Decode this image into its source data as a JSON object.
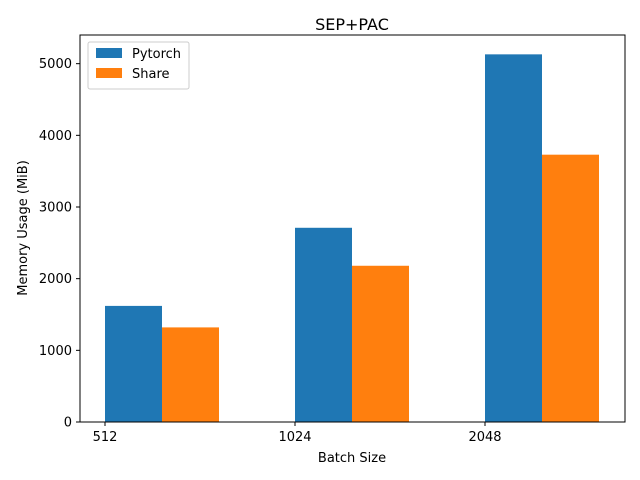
{
  "chart_data": {
    "type": "bar",
    "title": "SEP+PAC",
    "xlabel": "Batch Size",
    "ylabel": "Memory Usage (MiB)",
    "categories": [
      "512",
      "1024",
      "2048"
    ],
    "series": [
      {
        "name": "Pytorch",
        "color": "#1f77b4",
        "values": [
          1620,
          2710,
          5130
        ]
      },
      {
        "name": "Share",
        "color": "#ff7f0e",
        "values": [
          1320,
          2180,
          3730
        ]
      }
    ],
    "yticks": [
      0,
      1000,
      2000,
      3000,
      4000,
      5000
    ],
    "ylim": [
      0,
      5400
    ],
    "grid": false,
    "legend_position": "top-left"
  }
}
